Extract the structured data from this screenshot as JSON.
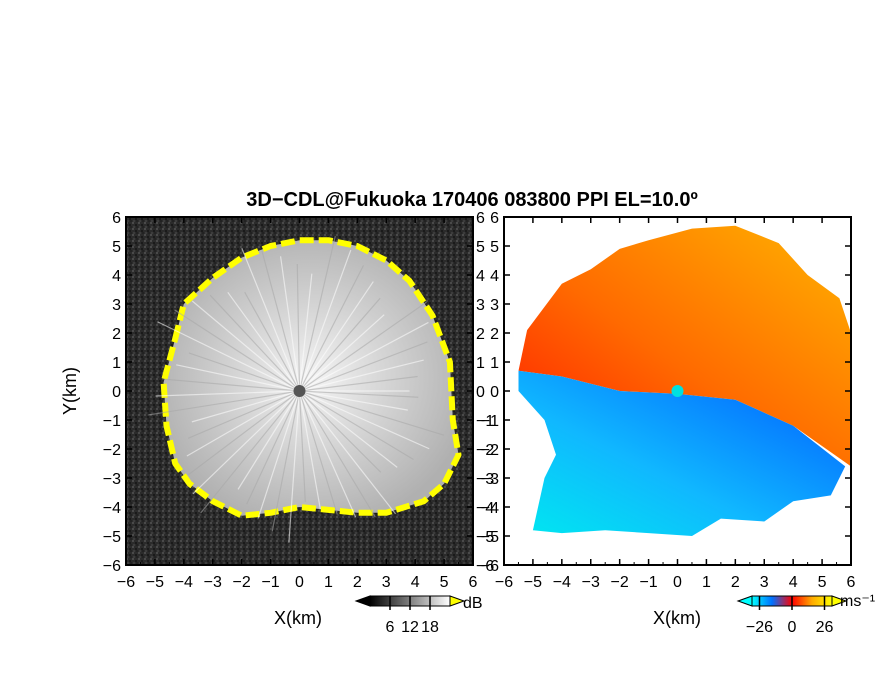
{
  "chart_data": {
    "type": "heatmap",
    "title": "3D−CDL@Fukuoka 170406 083800 PPI EL=10.0º",
    "xlabel": "X(km)",
    "ylabel": "Y(km)",
    "xlim": [
      -6,
      6
    ],
    "ylim": [
      -6,
      6
    ],
    "x_ticks": [
      "−6",
      "−5",
      "−4",
      "−3",
      "−2",
      "−1",
      "0",
      "1",
      "2",
      "3",
      "4",
      "5",
      "6"
    ],
    "y_ticks": [
      "6",
      "5",
      "4",
      "3",
      "2",
      "1",
      "0",
      "−1",
      "−2",
      "−3",
      "−4",
      "−5",
      "−6"
    ],
    "panels": [
      {
        "field": "reflectivity",
        "colorbar": {
          "unit": "dB",
          "ticks": [
            "6",
            "12",
            "18"
          ],
          "tick_values": [
            6,
            12,
            18
          ],
          "range": [
            0,
            24
          ],
          "colors": [
            "#000000",
            "#ffffff"
          ],
          "saturation_color": "#ffff00"
        },
        "echo_outline_km": [
          [
            -4.3,
            1.8
          ],
          [
            -4.0,
            3.0
          ],
          [
            -3.0,
            3.9
          ],
          [
            -2.0,
            4.6
          ],
          [
            -1.0,
            5.0
          ],
          [
            0.0,
            5.2
          ],
          [
            1.0,
            5.2
          ],
          [
            2.0,
            5.0
          ],
          [
            3.0,
            4.5
          ],
          [
            3.8,
            3.8
          ],
          [
            4.6,
            2.6
          ],
          [
            5.2,
            1.0
          ],
          [
            5.3,
            -1.0
          ],
          [
            5.5,
            -2.2
          ],
          [
            5.0,
            -3.2
          ],
          [
            4.3,
            -3.8
          ],
          [
            3.0,
            -4.2
          ],
          [
            2.0,
            -4.2
          ],
          [
            1.0,
            -4.1
          ],
          [
            0.0,
            -4.0
          ],
          [
            -1.0,
            -4.2
          ],
          [
            -2.0,
            -4.3
          ],
          [
            -3.0,
            -3.8
          ],
          [
            -3.8,
            -3.2
          ],
          [
            -4.3,
            -2.5
          ],
          [
            -4.6,
            -1.2
          ],
          [
            -4.7,
            0.3
          ]
        ],
        "radar_site_km": [
          0,
          0
        ]
      },
      {
        "field": "doppler_velocity",
        "colorbar": {
          "unit": "ms⁻¹",
          "ticks": [
            "−26",
            "0",
            "26"
          ],
          "tick_values": [
            -26,
            0,
            26
          ],
          "range": [
            -32,
            32
          ],
          "colors": [
            "#00ffff",
            "#0070ff",
            "#ff0000",
            "#ffaa00",
            "#ffff00"
          ]
        },
        "approaching_region_km": [
          [
            -5.5,
            0.7
          ],
          [
            -4.0,
            0.5
          ],
          [
            -2.0,
            0.0
          ],
          [
            0.0,
            -0.1
          ],
          [
            2.0,
            -0.3
          ],
          [
            4.0,
            -1.2
          ],
          [
            5.8,
            -2.6
          ],
          [
            5.3,
            -3.6
          ],
          [
            4.0,
            -3.8
          ],
          [
            3.0,
            -4.5
          ],
          [
            1.5,
            -4.4
          ],
          [
            0.5,
            -5.0
          ],
          [
            -1.0,
            -4.9
          ],
          [
            -2.5,
            -4.8
          ],
          [
            -4.0,
            -4.9
          ],
          [
            -5.0,
            -4.8
          ],
          [
            -4.6,
            -3.0
          ],
          [
            -4.2,
            -2.2
          ],
          [
            -4.6,
            -1.0
          ],
          [
            -5.5,
            0.0
          ]
        ],
        "receding_region_km": [
          [
            -5.5,
            0.7
          ],
          [
            -5.2,
            2.1
          ],
          [
            -4.0,
            3.7
          ],
          [
            -3.0,
            4.2
          ],
          [
            -2.0,
            4.9
          ],
          [
            -1.0,
            5.2
          ],
          [
            0.5,
            5.6
          ],
          [
            2.0,
            5.7
          ],
          [
            3.5,
            5.1
          ],
          [
            4.5,
            4.0
          ],
          [
            5.6,
            3.2
          ],
          [
            6.0,
            2.0
          ],
          [
            6.0,
            -2.6
          ],
          [
            4.0,
            -1.2
          ],
          [
            2.0,
            -0.3
          ],
          [
            0.0,
            -0.1
          ],
          [
            -2.0,
            0.0
          ],
          [
            -4.0,
            0.5
          ]
        ],
        "radar_site_km": [
          0,
          0
        ]
      }
    ]
  }
}
